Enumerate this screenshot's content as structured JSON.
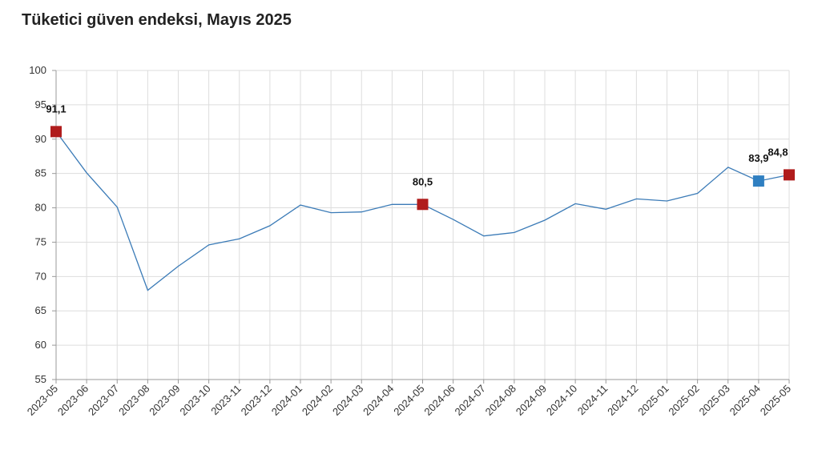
{
  "chart_data": {
    "type": "line",
    "title": "Tüketici güven endeksi, Mayıs 2025",
    "xlabel": "",
    "ylabel": "",
    "ylim": [
      55,
      100
    ],
    "yticks": [
      55,
      60,
      65,
      70,
      75,
      80,
      85,
      90,
      95,
      100
    ],
    "grid": true,
    "categories": [
      "2023-05",
      "2023-06",
      "2023-07",
      "2023-08",
      "2023-09",
      "2023-10",
      "2023-11",
      "2023-12",
      "2024-01",
      "2024-02",
      "2024-03",
      "2024-04",
      "2024-05",
      "2024-06",
      "2024-07",
      "2024-08",
      "2024-09",
      "2024-10",
      "2024-11",
      "2024-12",
      "2025-01",
      "2025-02",
      "2025-03",
      "2025-04",
      "2025-05"
    ],
    "series": [
      {
        "values": [
          91.1,
          85.1,
          80.1,
          68.0,
          71.5,
          74.6,
          75.5,
          77.4,
          80.4,
          79.3,
          79.4,
          80.5,
          80.5,
          78.3,
          75.9,
          76.4,
          78.2,
          80.6,
          79.8,
          81.3,
          81.0,
          82.1,
          85.9,
          83.9,
          84.8
        ],
        "color": "#3b7bb7"
      }
    ],
    "highlights": [
      {
        "index": 0,
        "label": "91,1",
        "color": "#b01c1c"
      },
      {
        "index": 12,
        "label": "80,5",
        "color": "#b01c1c"
      },
      {
        "index": 23,
        "label": "83,9",
        "color": "#2f7fc1"
      },
      {
        "index": 24,
        "label": "84,8",
        "color": "#b01c1c"
      }
    ]
  }
}
